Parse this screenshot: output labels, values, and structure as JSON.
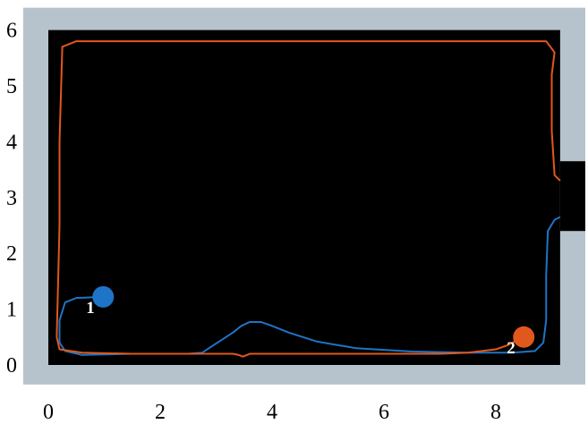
{
  "chart_data": {
    "type": "line",
    "title": "",
    "xlabel": "",
    "ylabel": "",
    "xlim": [
      -0.45,
      9.6
    ],
    "ylim": [
      -0.35,
      6.4
    ],
    "x_ticks": [
      "0",
      "2",
      "4",
      "6",
      "8"
    ],
    "y_ticks": [
      "0",
      "1",
      "2",
      "3",
      "4",
      "5",
      "6"
    ],
    "grid": false,
    "legend": "none",
    "colors": {
      "wall": "#b7c3cc",
      "floor": "#000000",
      "agent_1": "#1e74c6",
      "agent_2": "#e1581c"
    },
    "arena": {
      "outer": {
        "x": [
          -0.45,
          9.6
        ],
        "y": [
          -0.35,
          6.4
        ]
      },
      "floor": {
        "x": [
          0.0,
          9.15
        ],
        "y": [
          0.0,
          6.0
        ]
      },
      "doorway": {
        "x": [
          9.15,
          9.6
        ],
        "y": [
          2.4,
          3.65
        ]
      }
    },
    "series": [
      {
        "agent": "1",
        "color": "#1e74c6",
        "marker": {
          "x": 0.98,
          "y": 1.22
        },
        "x": [
          9.15,
          9.05,
          8.93,
          8.9,
          8.9,
          8.85,
          8.7,
          8.3,
          7.5,
          6.5,
          5.5,
          4.8,
          4.3,
          4.0,
          3.8,
          3.6,
          3.45,
          3.3,
          3.1,
          2.9,
          2.75,
          2.5,
          1.5,
          0.6,
          0.3,
          0.2,
          0.2,
          0.3,
          0.5,
          0.98
        ],
        "y": [
          2.65,
          2.6,
          2.4,
          1.6,
          0.8,
          0.4,
          0.25,
          0.22,
          0.22,
          0.24,
          0.3,
          0.42,
          0.58,
          0.7,
          0.77,
          0.77,
          0.7,
          0.58,
          0.45,
          0.32,
          0.22,
          0.2,
          0.2,
          0.18,
          0.25,
          0.4,
          0.8,
          1.12,
          1.2,
          1.22
        ]
      },
      {
        "agent": "2",
        "color": "#e1581c",
        "marker": {
          "x": 8.5,
          "y": 0.5
        },
        "x": [
          9.15,
          9.05,
          9.0,
          9.0,
          9.05,
          8.9,
          8.0,
          6.0,
          4.0,
          2.0,
          0.5,
          0.25,
          0.2,
          0.2,
          0.15,
          0.2,
          0.6,
          1.5,
          2.5,
          3.3,
          3.4,
          3.48,
          3.6,
          5.0,
          6.0,
          7.0,
          7.5,
          8.0,
          8.2,
          8.5
        ],
        "y": [
          3.3,
          3.4,
          4.2,
          5.2,
          5.6,
          5.8,
          5.8,
          5.8,
          5.8,
          5.8,
          5.8,
          5.7,
          4.0,
          2.5,
          0.5,
          0.28,
          0.22,
          0.2,
          0.2,
          0.2,
          0.18,
          0.15,
          0.2,
          0.2,
          0.2,
          0.2,
          0.22,
          0.28,
          0.35,
          0.5
        ]
      }
    ]
  }
}
